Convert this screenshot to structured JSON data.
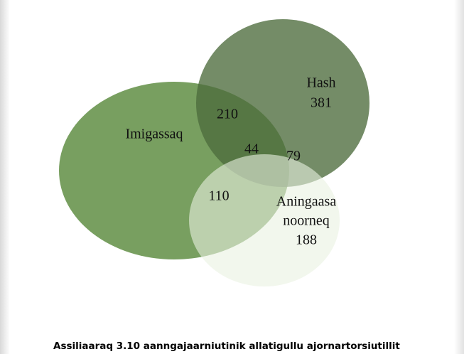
{
  "sets": [
    {
      "label": "Imigassaq"
    },
    {
      "label": "Hash",
      "value": 381
    },
    {
      "label": "Aningaasa noorneq",
      "label_lines": [
        "Aningaasa",
        "noorneq"
      ],
      "value": 188
    }
  ],
  "regions": {
    "imigassaq_hash": 210,
    "all_three": 44,
    "hash_aningaasa": 79,
    "imigassaq_aningaasa": 110
  },
  "caption": "Assiliaaraq 3.10 aanngajaarniutinik allatigullu ajornartorsiutillit"
}
